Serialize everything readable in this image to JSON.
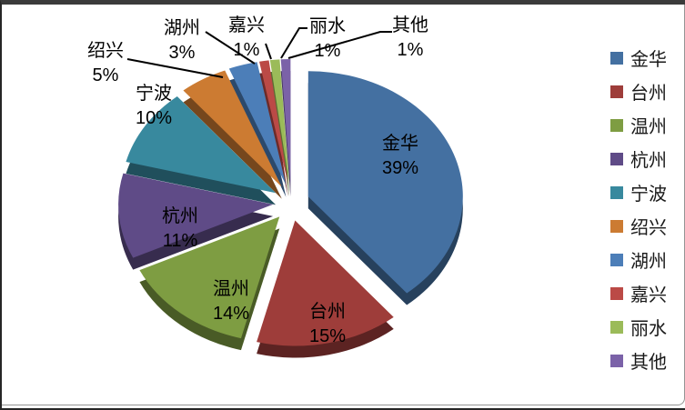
{
  "chart_data": {
    "type": "pie",
    "style": "3d-exploded",
    "title": "",
    "unit": "percent",
    "legend_position": "right",
    "label_format": "name + percent",
    "slices": [
      {
        "name": "金华",
        "value": 39,
        "pct_text": "39%",
        "color": "#4470A1",
        "label_placement": "inside"
      },
      {
        "name": "台州",
        "value": 15,
        "pct_text": "15%",
        "color": "#9E3D3A",
        "label_placement": "inside"
      },
      {
        "name": "温州",
        "value": 14,
        "pct_text": "14%",
        "color": "#7E9D42",
        "label_placement": "inside"
      },
      {
        "name": "杭州",
        "value": 11,
        "pct_text": "11%",
        "color": "#5F4B87",
        "label_placement": "inside"
      },
      {
        "name": "宁波",
        "value": 10,
        "pct_text": "10%",
        "color": "#38899E",
        "label_placement": "outside"
      },
      {
        "name": "绍兴",
        "value": 5,
        "pct_text": "5%",
        "color": "#CC7B32",
        "label_placement": "outside-leader"
      },
      {
        "name": "湖州",
        "value": 3,
        "pct_text": "3%",
        "color": "#4C7EB8",
        "label_placement": "outside-leader"
      },
      {
        "name": "嘉兴",
        "value": 1,
        "pct_text": "1%",
        "color": "#BB4A46",
        "label_placement": "outside-leader"
      },
      {
        "name": "丽水",
        "value": 1,
        "pct_text": "1%",
        "color": "#9BBB59",
        "label_placement": "outside-leader"
      },
      {
        "name": "其他",
        "value": 1,
        "pct_text": "1%",
        "color": "#7B62A8",
        "label_placement": "outside-leader"
      }
    ],
    "legend_items": [
      "金华",
      "台州",
      "温州",
      "杭州",
      "宁波",
      "绍兴",
      "湖州",
      "嘉兴",
      "丽水",
      "其他"
    ],
    "leader_line_color": "#000000"
  }
}
